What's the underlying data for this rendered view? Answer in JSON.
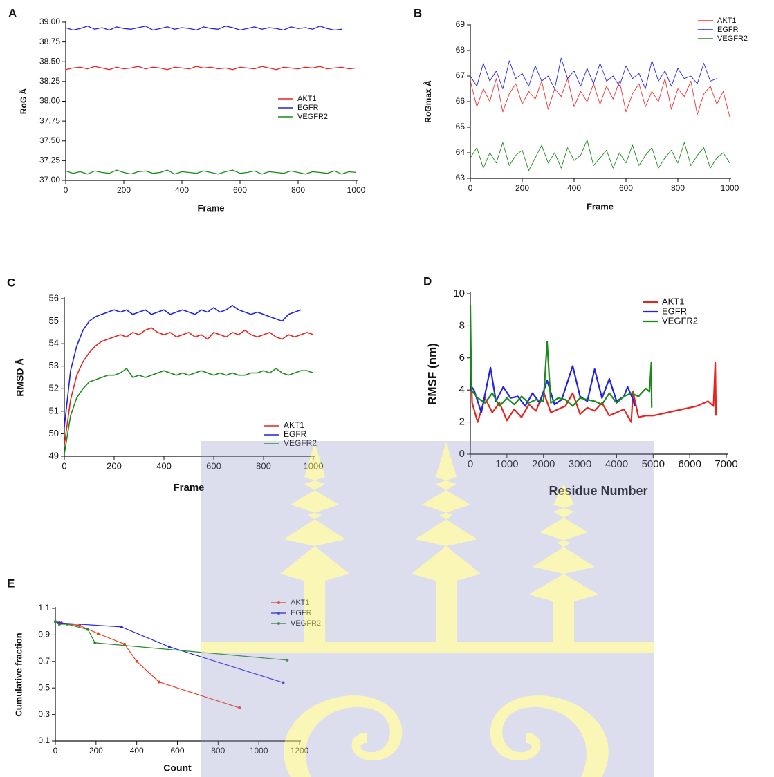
{
  "chart_data": [
    {
      "type": "line",
      "panel": "A",
      "xlabel": "Frame",
      "ylabel": "RoG Å",
      "x": [
        0,
        25,
        50,
        75,
        100,
        125,
        150,
        175,
        200,
        225,
        250,
        275,
        300,
        325,
        350,
        375,
        400,
        425,
        450,
        475,
        500,
        525,
        550,
        575,
        600,
        625,
        650,
        675,
        700,
        725,
        750,
        775,
        800,
        825,
        850,
        875,
        900,
        925,
        950,
        975,
        1000
      ],
      "xlim": [
        0,
        1000
      ],
      "xticks": [
        0,
        200,
        400,
        600,
        800,
        1000
      ],
      "ylim": [
        37,
        39
      ],
      "yticks": [
        {
          "value": 37,
          "label": "37.00"
        },
        {
          "value": 37.25,
          "label": "37.25"
        },
        {
          "value": 37.5,
          "label": "37.50"
        },
        {
          "value": 37.75,
          "label": "37.75"
        },
        {
          "value": 38,
          "label": "38.00"
        },
        {
          "value": 38.25,
          "label": "38.25"
        },
        {
          "value": 38.5,
          "label": "38.50"
        },
        {
          "value": 38.75,
          "label": "38.75"
        },
        {
          "value": 39,
          "label": "39.00"
        }
      ],
      "series": [
        {
          "name": "AKT1",
          "color": "#e8231f",
          "values": [
            38.4,
            38.42,
            38.43,
            38.41,
            38.44,
            38.42,
            38.4,
            38.43,
            38.41,
            38.42,
            38.44,
            38.41,
            38.43,
            38.42,
            38.4,
            38.43,
            38.42,
            38.41,
            38.44,
            38.42,
            38.43,
            38.41,
            38.42,
            38.4,
            38.43,
            38.42,
            38.41,
            38.44,
            38.42,
            38.4,
            38.43,
            38.42,
            38.41,
            38.43,
            38.42,
            38.44,
            38.41,
            38.42,
            38.43,
            38.41,
            38.42
          ]
        },
        {
          "name": "EGFR",
          "color": "#1f23e6",
          "values": [
            38.93,
            38.9,
            38.92,
            38.95,
            38.91,
            38.93,
            38.9,
            38.94,
            38.92,
            38.91,
            38.93,
            38.95,
            38.9,
            38.92,
            38.94,
            38.91,
            38.93,
            38.92,
            38.9,
            38.94,
            38.92,
            38.91,
            38.95,
            38.93,
            38.9,
            38.92,
            38.94,
            38.91,
            38.93,
            38.92,
            38.9,
            38.94,
            38.92,
            38.93,
            38.91,
            38.95,
            38.92,
            38.9,
            38.91,
            null,
            null
          ]
        },
        {
          "name": "VEGFR2",
          "color": "#1a8a1a",
          "values": [
            37.12,
            37.09,
            37.11,
            37.08,
            37.12,
            37.1,
            37.09,
            37.13,
            37.1,
            37.08,
            37.11,
            37.12,
            37.09,
            37.1,
            37.13,
            37.08,
            37.11,
            37.1,
            37.09,
            37.12,
            37.1,
            37.08,
            37.11,
            37.13,
            37.09,
            37.1,
            37.12,
            37.08,
            37.11,
            37.1,
            37.09,
            37.12,
            37.1,
            37.08,
            37.11,
            37.1,
            37.09,
            37.12,
            37.08,
            37.11,
            37.1
          ]
        }
      ]
    },
    {
      "type": "line",
      "panel": "B",
      "xlabel": "Frame",
      "ylabel": "RoGmax Å",
      "x": [
        0,
        25,
        50,
        75,
        100,
        125,
        150,
        175,
        200,
        225,
        250,
        275,
        300,
        325,
        350,
        375,
        400,
        425,
        450,
        475,
        500,
        525,
        550,
        575,
        600,
        625,
        650,
        675,
        700,
        725,
        750,
        775,
        800,
        825,
        850,
        875,
        900,
        925,
        950,
        975,
        1000
      ],
      "xlim": [
        0,
        1000
      ],
      "xticks": [
        0,
        200,
        400,
        600,
        800,
        1000
      ],
      "ylim": [
        63,
        69
      ],
      "yticks": [
        63,
        64,
        65,
        66,
        67,
        68,
        69
      ],
      "series": [
        {
          "name": "AKT1",
          "color": "#f03030",
          "values": [
            66.8,
            65.8,
            66.5,
            66.0,
            66.9,
            65.6,
            66.3,
            66.7,
            65.9,
            66.4,
            66.1,
            66.8,
            65.7,
            66.5,
            66.2,
            66.9,
            65.8,
            66.4,
            66.0,
            66.7,
            65.9,
            66.6,
            66.1,
            66.8,
            65.6,
            66.3,
            66.7,
            65.8,
            66.4,
            66.0,
            66.9,
            65.7,
            66.5,
            66.2,
            66.8,
            65.5,
            66.3,
            66.6,
            65.9,
            66.4,
            65.4
          ]
        },
        {
          "name": "EGFR",
          "color": "#2626f0",
          "values": [
            67.0,
            66.6,
            67.5,
            66.8,
            67.2,
            66.5,
            67.6,
            66.9,
            67.1,
            66.6,
            67.4,
            66.8,
            67.0,
            66.5,
            67.7,
            66.9,
            67.2,
            66.6,
            67.3,
            66.7,
            67.5,
            66.8,
            67.0,
            66.6,
            67.4,
            66.9,
            67.1,
            66.5,
            67.6,
            66.8,
            67.2,
            66.6,
            67.3,
            66.9,
            67.0,
            66.7,
            67.5,
            66.8,
            66.9,
            null,
            null
          ]
        },
        {
          "name": "VEGFR2",
          "color": "#1a8a1a",
          "values": [
            63.8,
            64.2,
            63.4,
            64.0,
            63.6,
            64.4,
            63.5,
            63.9,
            64.1,
            63.3,
            63.8,
            64.3,
            63.6,
            64.0,
            63.4,
            64.2,
            63.7,
            63.9,
            64.5,
            63.5,
            63.8,
            64.1,
            63.4,
            64.0,
            63.6,
            64.3,
            63.5,
            63.9,
            64.2,
            63.4,
            63.8,
            64.1,
            63.6,
            64.4,
            63.5,
            63.9,
            64.2,
            63.4,
            63.8,
            64.0,
            63.6
          ]
        }
      ]
    },
    {
      "type": "line",
      "panel": "C",
      "xlabel": "Frame",
      "ylabel": "RMSD Å",
      "x": [
        0,
        25,
        50,
        75,
        100,
        125,
        150,
        175,
        200,
        225,
        250,
        275,
        300,
        325,
        350,
        375,
        400,
        425,
        450,
        475,
        500,
        525,
        550,
        575,
        600,
        625,
        650,
        675,
        700,
        725,
        750,
        775,
        800,
        825,
        850,
        875,
        900,
        925,
        950,
        975,
        1000
      ],
      "xlim": [
        0,
        1000
      ],
      "xticks": [
        0,
        200,
        400,
        600,
        800,
        1000
      ],
      "ylim": [
        49,
        56
      ],
      "yticks": [
        49,
        50,
        51,
        52,
        53,
        54,
        55,
        56
      ],
      "series": [
        {
          "name": "AKT1",
          "color": "#e8231f",
          "values": [
            49.5,
            51.5,
            52.6,
            53.2,
            53.6,
            53.9,
            54.1,
            54.2,
            54.3,
            54.4,
            54.3,
            54.5,
            54.4,
            54.6,
            54.7,
            54.5,
            54.4,
            54.5,
            54.3,
            54.4,
            54.5,
            54.3,
            54.4,
            54.2,
            54.5,
            54.4,
            54.3,
            54.5,
            54.4,
            54.6,
            54.4,
            54.3,
            54.4,
            54.5,
            54.3,
            54.2,
            54.4,
            54.3,
            54.4,
            54.5,
            54.4
          ]
        },
        {
          "name": "EGFR",
          "color": "#1f23e6",
          "values": [
            50.3,
            52.8,
            53.9,
            54.6,
            55.0,
            55.2,
            55.3,
            55.4,
            55.5,
            55.4,
            55.5,
            55.3,
            55.4,
            55.5,
            55.3,
            55.4,
            55.5,
            55.3,
            55.4,
            55.5,
            55.4,
            55.3,
            55.5,
            55.4,
            55.6,
            55.4,
            55.5,
            55.7,
            55.5,
            55.4,
            55.3,
            55.4,
            55.3,
            55.2,
            55.1,
            55.0,
            55.3,
            55.4,
            55.5,
            null,
            null
          ]
        },
        {
          "name": "VEGFR2",
          "color": "#1a8a1a",
          "values": [
            49.1,
            50.8,
            51.6,
            52.0,
            52.3,
            52.4,
            52.5,
            52.6,
            52.6,
            52.7,
            52.9,
            52.5,
            52.6,
            52.5,
            52.6,
            52.7,
            52.8,
            52.7,
            52.6,
            52.7,
            52.6,
            52.7,
            52.8,
            52.7,
            52.6,
            52.7,
            52.6,
            52.7,
            52.6,
            52.6,
            52.7,
            52.7,
            52.8,
            52.7,
            52.9,
            52.7,
            52.6,
            52.7,
            52.8,
            52.8,
            52.7
          ]
        }
      ]
    },
    {
      "type": "line",
      "panel": "D",
      "xlabel": "Residue Number",
      "ylabel": "RMSF (nm)",
      "xlim": [
        0,
        7000
      ],
      "xticks": [
        0,
        1000,
        2000,
        3000,
        4000,
        5000,
        6000,
        7000
      ],
      "ylim": [
        0,
        10
      ],
      "yticks": [
        0,
        2,
        4,
        6,
        8,
        10
      ],
      "series": [
        {
          "name": "AKT1",
          "color": "#e8231f",
          "x": [
            0,
            50,
            200,
            400,
            600,
            800,
            1000,
            1200,
            1400,
            1600,
            1800,
            2000,
            2200,
            2400,
            2600,
            2800,
            3000,
            3200,
            3400,
            3600,
            3800,
            4000,
            4200,
            4400,
            4450,
            4600,
            4800,
            5000,
            5400,
            5800,
            6200,
            6500,
            6650,
            6700,
            6720
          ],
          "values": [
            6.8,
            3.2,
            2.0,
            3.5,
            2.6,
            3.2,
            2.1,
            2.8,
            2.3,
            3.1,
            2.7,
            3.9,
            2.6,
            2.8,
            3.0,
            3.8,
            2.5,
            2.9,
            2.7,
            3.2,
            2.4,
            2.6,
            2.8,
            2.0,
            3.9,
            2.3,
            2.4,
            2.4,
            2.6,
            2.8,
            3.0,
            3.3,
            3.0,
            5.7,
            2.4
          ]
        },
        {
          "name": "EGFR",
          "color": "#1f23e6",
          "x": [
            0,
            100,
            300,
            550,
            700,
            900,
            1100,
            1300,
            1500,
            1700,
            1900,
            2100,
            2300,
            2500,
            2800,
            3000,
            3200,
            3400,
            3600,
            3800,
            4000,
            4200,
            4300,
            4450,
            4500
          ],
          "values": [
            4.3,
            4.0,
            2.6,
            5.4,
            3.3,
            4.2,
            3.5,
            3.6,
            3.0,
            3.8,
            3.2,
            4.6,
            3.1,
            3.4,
            5.5,
            3.6,
            3.3,
            5.3,
            3.5,
            4.7,
            3.3,
            3.6,
            4.2,
            3.4,
            3.0
          ]
        },
        {
          "name": "VEGFR2",
          "color": "#1a8a1a",
          "x": [
            0,
            30,
            200,
            400,
            600,
            800,
            1000,
            1200,
            1400,
            1600,
            1800,
            2000,
            2100,
            2200,
            2400,
            2600,
            2800,
            3000,
            3200,
            3400,
            3600,
            3800,
            4000,
            4200,
            4400,
            4600,
            4800,
            4900,
            4950,
            4960
          ],
          "values": [
            9.3,
            4.0,
            3.5,
            3.2,
            3.8,
            3.0,
            3.5,
            3.1,
            3.6,
            3.2,
            3.4,
            3.3,
            7.0,
            3.2,
            3.5,
            3.4,
            3.0,
            3.5,
            3.4,
            3.3,
            3.1,
            3.8,
            3.2,
            3.6,
            3.8,
            3.6,
            4.1,
            3.9,
            5.7,
            2.9
          ]
        }
      ]
    },
    {
      "type": "line",
      "panel": "E",
      "xlabel": "Count",
      "ylabel": "Cumulative fraction",
      "markers": true,
      "xlim": [
        0,
        1200
      ],
      "xticks": [
        0,
        200,
        400,
        600,
        800,
        1000,
        1200
      ],
      "ylim": [
        0.1,
        1.1
      ],
      "yticks": [
        0.1,
        0.3,
        0.5,
        0.7,
        0.9,
        1.1
      ],
      "series": [
        {
          "name": "AKT1",
          "color": "#f03a1e",
          "x": [
            0,
            30,
            120,
            210,
            340,
            400,
            510,
            905
          ],
          "values": [
            1.0,
            0.99,
            0.97,
            0.91,
            0.83,
            0.7,
            0.545,
            0.35
          ]
        },
        {
          "name": "EGFR",
          "color": "#2a2ae0",
          "x": [
            0,
            20,
            325,
            560,
            1120
          ],
          "values": [
            1.0,
            0.99,
            0.96,
            0.81,
            0.54
          ]
        },
        {
          "name": "VEGFR2",
          "color": "#2a8a2a",
          "x": [
            0,
            20,
            60,
            160,
            195,
            1140
          ],
          "values": [
            1.0,
            0.98,
            0.98,
            0.94,
            0.84,
            0.71
          ]
        }
      ]
    }
  ]
}
